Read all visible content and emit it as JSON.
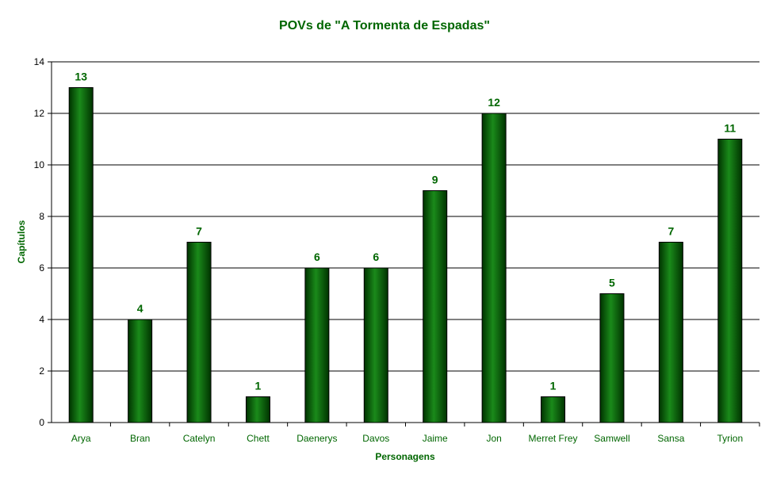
{
  "chart_data": {
    "type": "bar",
    "title": "POVs de \"A Tormenta de Espadas\"",
    "xlabel": "Personagens",
    "ylabel": "Capítulos",
    "categories": [
      "Arya",
      "Bran",
      "Catelyn",
      "Chett",
      "Daenerys",
      "Davos",
      "Jaime",
      "Jon",
      "Merret Frey",
      "Samwell",
      "Sansa",
      "Tyrion"
    ],
    "values": [
      13,
      4,
      7,
      1,
      6,
      6,
      9,
      12,
      1,
      5,
      7,
      11
    ],
    "ylim": [
      0,
      14
    ],
    "yticks": [
      0,
      2,
      4,
      6,
      8,
      10,
      12,
      14
    ],
    "grid": true,
    "legend": "none",
    "data_labels": true,
    "colors": {
      "bar_dark": "#003300",
      "bar_mid": "#006600",
      "bar_light": "#1a8a1a",
      "text": "#006600",
      "axis": "#000000",
      "grid": "#000000"
    }
  }
}
